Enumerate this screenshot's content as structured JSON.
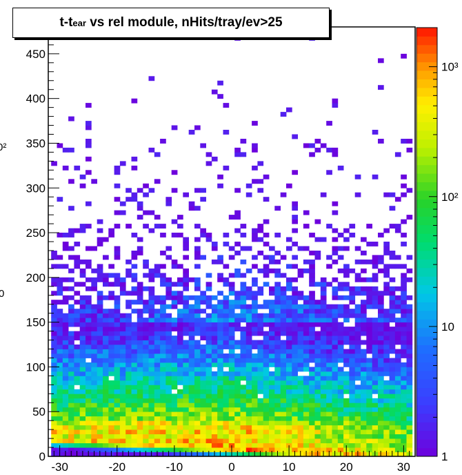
{
  "chart_data": {
    "type": "heatmap",
    "title": {
      "prefix": "t-t",
      "subscript": "ear",
      "suffix": " vs rel module, nHits/tray/ev>25"
    },
    "xlabel": "",
    "ylabel": "",
    "xlim": [
      -32,
      32
    ],
    "ylim": [
      0,
      480
    ],
    "x_ticks": [
      "-30",
      "-20",
      "-10",
      "0",
      "10",
      "20",
      "30"
    ],
    "y_ticks": [
      "0",
      "50",
      "100",
      "150",
      "200",
      "250",
      "300",
      "350",
      "400",
      "450"
    ],
    "z_scale": "log",
    "z_range": [
      1,
      2000
    ],
    "color_ticks": [
      "1",
      "10",
      "10²",
      "10³"
    ],
    "clipped_left_labels": [
      "0",
      "0",
      "0²"
    ],
    "grid": false,
    "bin_size": {
      "x": 1,
      "y": 5
    },
    "intensity_profile": {
      "description_free_values": {
        "peak_time_at_module_0": 5,
        "peak_count": 1000,
        "band_time_slope_per_module": -0.35,
        "core_band_upper_time": 150,
        "sparse_upper_time": 470
      }
    }
  }
}
